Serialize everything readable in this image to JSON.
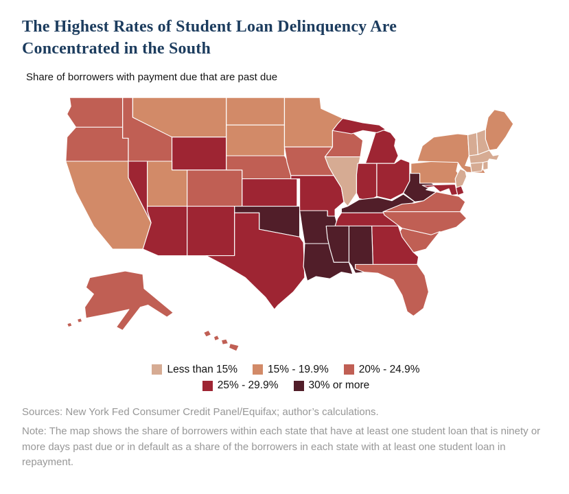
{
  "header": {
    "title": "The Highest Rates of Student Loan Delinquency Are Concentrated in the South",
    "subtitle": "Share of borrowers with payment due that are past due"
  },
  "legend": {
    "items": [
      {
        "label": "Less than 15%",
        "color": "#d6ab93"
      },
      {
        "label": "15% - 19.9%",
        "color": "#d28a68"
      },
      {
        "label": "20% - 24.9%",
        "color": "#c05f54"
      },
      {
        "label": "25% - 29.9%",
        "color": "#9e2533"
      },
      {
        "label": "30% or more",
        "color": "#511e29"
      }
    ]
  },
  "footer": {
    "sources": "Sources: New York Fed Consumer Credit Panel/Equifax; author’s calculations.",
    "note": "Note: The map shows the share of borrowers within each state that have at least one student loan that is ninety or more days past due or in default as a share of the borrowers in each state with at least one student loan in repayment."
  },
  "chart_data": {
    "type": "choropleth",
    "region": "United States",
    "title": "The Highest Rates of Student Loan Delinquency Are Concentrated in the South",
    "metric": "Share of borrowers with payment due that are past due",
    "bins": [
      "Less than 15%",
      "15% - 19.9%",
      "20% - 24.9%",
      "25% - 29.9%",
      "30% or more"
    ],
    "states": {
      "AL": {
        "name": "Alabama",
        "bin": "30% or more"
      },
      "AK": {
        "name": "Alaska",
        "bin": "20% - 24.9%"
      },
      "AZ": {
        "name": "Arizona",
        "bin": "25% - 29.9%"
      },
      "AR": {
        "name": "Arkansas",
        "bin": "30% or more"
      },
      "CA": {
        "name": "California",
        "bin": "15% - 19.9%"
      },
      "CO": {
        "name": "Colorado",
        "bin": "20% - 24.9%"
      },
      "CT": {
        "name": "Connecticut",
        "bin": "Less than 15%"
      },
      "DE": {
        "name": "Delaware",
        "bin": "25% - 29.9%"
      },
      "FL": {
        "name": "Florida",
        "bin": "20% - 24.9%"
      },
      "GA": {
        "name": "Georgia",
        "bin": "25% - 29.9%"
      },
      "HI": {
        "name": "Hawaii",
        "bin": "20% - 24.9%"
      },
      "ID": {
        "name": "Idaho",
        "bin": "20% - 24.9%"
      },
      "IL": {
        "name": "Illinois",
        "bin": "Less than 15%"
      },
      "IN": {
        "name": "Indiana",
        "bin": "25% - 29.9%"
      },
      "IA": {
        "name": "Iowa",
        "bin": "20% - 24.9%"
      },
      "KS": {
        "name": "Kansas",
        "bin": "25% - 29.9%"
      },
      "KY": {
        "name": "Kentucky",
        "bin": "30% or more"
      },
      "LA": {
        "name": "Louisiana",
        "bin": "30% or more"
      },
      "ME": {
        "name": "Maine",
        "bin": "15% - 19.9%"
      },
      "MD": {
        "name": "Maryland",
        "bin": "25% - 29.9%"
      },
      "MA": {
        "name": "Massachusetts",
        "bin": "Less than 15%"
      },
      "MI": {
        "name": "Michigan",
        "bin": "25% - 29.9%"
      },
      "MN": {
        "name": "Minnesota",
        "bin": "15% - 19.9%"
      },
      "MS": {
        "name": "Mississippi",
        "bin": "30% or more"
      },
      "MO": {
        "name": "Missouri",
        "bin": "25% - 29.9%"
      },
      "MT": {
        "name": "Montana",
        "bin": "15% - 19.9%"
      },
      "NE": {
        "name": "Nebraska",
        "bin": "20% - 24.9%"
      },
      "NV": {
        "name": "Nevada",
        "bin": "25% - 29.9%"
      },
      "NH": {
        "name": "New Hampshire",
        "bin": "Less than 15%"
      },
      "NJ": {
        "name": "New Jersey",
        "bin": "Less than 15%"
      },
      "NM": {
        "name": "New Mexico",
        "bin": "25% - 29.9%"
      },
      "NY": {
        "name": "New York",
        "bin": "15% - 19.9%"
      },
      "NC": {
        "name": "North Carolina",
        "bin": "20% - 24.9%"
      },
      "ND": {
        "name": "North Dakota",
        "bin": "15% - 19.9%"
      },
      "OH": {
        "name": "Ohio",
        "bin": "25% - 29.9%"
      },
      "OK": {
        "name": "Oklahoma",
        "bin": "30% or more"
      },
      "OR": {
        "name": "Oregon",
        "bin": "20% - 24.9%"
      },
      "PA": {
        "name": "Pennsylvania",
        "bin": "15% - 19.9%"
      },
      "RI": {
        "name": "Rhode Island",
        "bin": "Less than 15%"
      },
      "SC": {
        "name": "South Carolina",
        "bin": "20% - 24.9%"
      },
      "SD": {
        "name": "South Dakota",
        "bin": "15% - 19.9%"
      },
      "TN": {
        "name": "Tennessee",
        "bin": "25% - 29.9%"
      },
      "TX": {
        "name": "Texas",
        "bin": "25% - 29.9%"
      },
      "UT": {
        "name": "Utah",
        "bin": "15% - 19.9%"
      },
      "VT": {
        "name": "Vermont",
        "bin": "Less than 15%"
      },
      "VA": {
        "name": "Virginia",
        "bin": "20% - 24.9%"
      },
      "WA": {
        "name": "Washington",
        "bin": "20% - 24.9%"
      },
      "WV": {
        "name": "West Virginia",
        "bin": "30% or more"
      },
      "WI": {
        "name": "Wisconsin",
        "bin": "20% - 24.9%"
      },
      "WY": {
        "name": "Wyoming",
        "bin": "25% - 29.9%"
      }
    }
  }
}
